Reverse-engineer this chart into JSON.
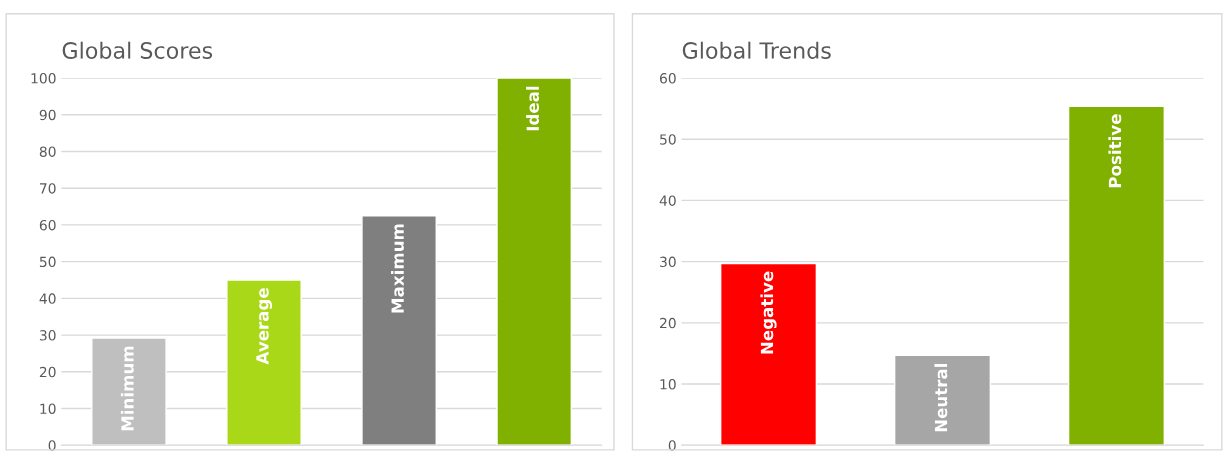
{
  "chart_data": [
    {
      "type": "bar",
      "title": "Global Scores",
      "categories": [
        "Minimum",
        "Average",
        "Maximum",
        "Ideal"
      ],
      "values": [
        29.2,
        45,
        62.5,
        100
      ],
      "colors": [
        "#bfbfbf",
        "#a9d818",
        "#7f7f7f",
        "#80b000"
      ],
      "ylim": [
        0,
        100
      ],
      "yticks": [
        0,
        10,
        20,
        30,
        40,
        50,
        60,
        70,
        80,
        90,
        100
      ],
      "grid": "y",
      "tick_labels": "y"
    },
    {
      "type": "bar",
      "title": "Global Trends",
      "categories": [
        "Negative",
        "Neutral",
        "Positive"
      ],
      "values": [
        29.7,
        14.7,
        55.4
      ],
      "colors": [
        "#ff0000",
        "#a6a6a6",
        "#80b000"
      ],
      "ylim": [
        0,
        60
      ],
      "yticks": [
        0,
        10,
        20,
        30,
        40,
        50,
        60
      ],
      "grid": "y",
      "tick_labels": "y"
    }
  ]
}
